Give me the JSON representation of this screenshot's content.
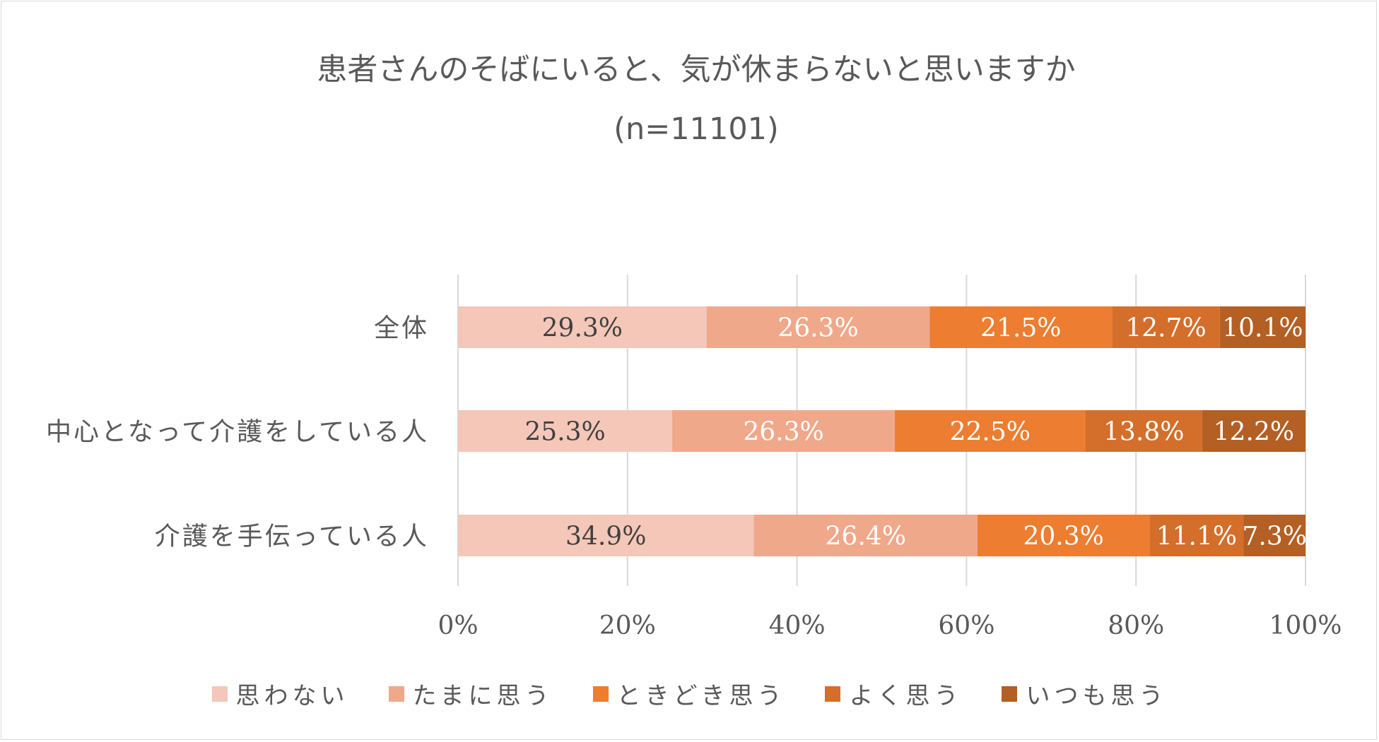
{
  "chart_data": {
    "type": "bar",
    "orientation": "horizontal",
    "stacked": "percent",
    "title": "患者さんのそばにいると、気が休まらないと思いますか",
    "subtitle": "(n=11101)",
    "categories": [
      "全体",
      "中心となって介護をしている人",
      "介護を手伝っている人"
    ],
    "series": [
      {
        "name": "思わない",
        "color": "#F4C7B8",
        "values": [
          29.3,
          25.3,
          34.9
        ],
        "labels": [
          "29.3%",
          "25.3%",
          "34.9%"
        ]
      },
      {
        "name": "たまに思う",
        "color": "#F0A88A",
        "values": [
          26.3,
          26.3,
          26.4
        ],
        "labels": [
          "26.3%",
          "26.3%",
          "26.4%"
        ]
      },
      {
        "name": "ときどき思う",
        "color": "#ED7D31",
        "values": [
          21.5,
          22.5,
          20.3
        ],
        "labels": [
          "21.5%",
          "22.5%",
          "20.3%"
        ]
      },
      {
        "name": "よく思う",
        "color": "#D46E2B",
        "values": [
          12.7,
          13.8,
          11.1
        ],
        "labels": [
          "12.7%",
          "13.8%",
          "11.1%"
        ]
      },
      {
        "name": "いつも思う",
        "color": "#B45F24",
        "values": [
          10.1,
          12.2,
          7.3
        ],
        "labels": [
          "10.1%",
          "12.2%",
          "7.3%"
        ]
      }
    ],
    "xticks": [
      "0%",
      "20%",
      "40%",
      "60%",
      "80%",
      "100%"
    ],
    "xlim": [
      0,
      100
    ],
    "grid": true,
    "legend": "bottom"
  }
}
